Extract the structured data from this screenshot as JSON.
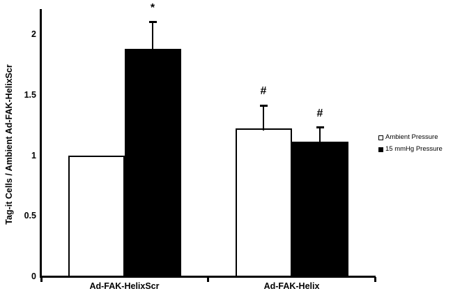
{
  "chart_data": {
    "type": "bar",
    "title": "",
    "xlabel": "",
    "ylabel": "Tag-it Cells / Ambient Ad-FAK-HelixScr",
    "ylim": [
      0,
      2.2
    ],
    "yticks": [
      0,
      0.5,
      1,
      1.5,
      2
    ],
    "ytick_labels": [
      "0",
      "0.5",
      "1",
      "1.5",
      "2"
    ],
    "categories": [
      "Ad-FAK-HelixScr",
      "Ad-FAK-Helix"
    ],
    "series": [
      {
        "name": "Ambient Pressure",
        "fill": "#ffffff",
        "values": [
          1.0,
          1.22
        ],
        "errors": [
          null,
          0.19
        ],
        "annotations": [
          null,
          "#"
        ]
      },
      {
        "name": "15 mmHg Pressure",
        "fill": "#000000",
        "values": [
          1.88,
          1.11
        ],
        "errors": [
          0.22,
          0.12
        ],
        "annotations": [
          "*",
          "#"
        ]
      }
    ],
    "grid": false,
    "legend_position": "right",
    "colors": {
      "bar_border": "#000000",
      "axis": "#000000",
      "background": "#ffffff"
    }
  }
}
